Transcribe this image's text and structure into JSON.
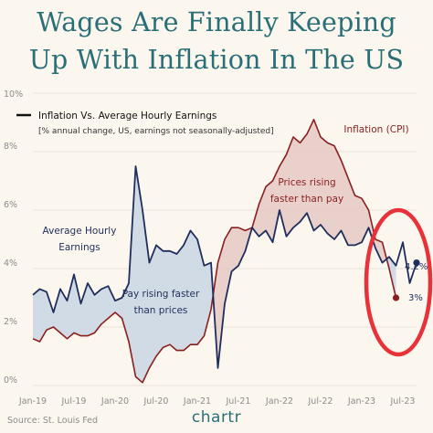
{
  "title_line1": "Wages Are Finally Keeping",
  "title_line2": "Up With Inflation In The US",
  "source": "Source: St. Louis Fed",
  "brand": "chartr",
  "chart_data": {
    "type": "line",
    "legend_title": "Inflation Vs. Average Hourly Earnings",
    "legend_subtitle": "[% annual change, US, earnings not seasonally-adjusted]",
    "xlabel": "",
    "ylabel": "",
    "ylim": [
      0,
      10
    ],
    "yticks": [
      "0%",
      "2%",
      "4%",
      "6%",
      "8%",
      "10%"
    ],
    "xticks": [
      "Jan-19",
      "Jul-19",
      "Jan-20",
      "Jul-20",
      "Jan-21",
      "Jul-21",
      "Jan-22",
      "Jul-22",
      "Jan-23",
      "Jul-23"
    ],
    "x_start": "2019-01",
    "series": [
      {
        "name": "Average Hourly Earnings",
        "color": "#1f2e5c",
        "values": [
          3.1,
          3.3,
          3.2,
          2.5,
          3.3,
          2.9,
          3.8,
          2.8,
          3.5,
          3.1,
          3.3,
          3.4,
          2.9,
          3.0,
          3.5,
          7.5,
          6.0,
          4.2,
          4.8,
          4.6,
          4.6,
          4.5,
          4.8,
          5.3,
          5.0,
          4.1,
          4.2,
          0.6,
          2.8,
          3.9,
          4.1,
          4.6,
          5.4,
          5.1,
          5.3,
          4.9,
          6.0,
          5.1,
          5.4,
          5.6,
          5.9,
          5.3,
          5.5,
          5.2,
          5.0,
          5.3,
          4.8,
          4.8,
          4.9,
          5.4,
          4.7,
          4.2,
          4.4,
          4.1,
          4.9,
          3.5,
          4.2
        ]
      },
      {
        "name": "Inflation (CPI)",
        "color": "#8a1f1f",
        "values": [
          1.6,
          1.5,
          1.9,
          2.0,
          1.8,
          1.6,
          1.8,
          1.7,
          1.7,
          1.8,
          2.1,
          2.3,
          2.5,
          2.3,
          1.5,
          0.3,
          0.1,
          0.6,
          1.0,
          1.3,
          1.4,
          1.2,
          1.2,
          1.4,
          1.4,
          1.7,
          2.6,
          4.2,
          5.0,
          5.4,
          5.4,
          5.3,
          5.4,
          6.2,
          6.8,
          7.0,
          7.5,
          7.9,
          8.5,
          8.3,
          8.6,
          9.1,
          8.5,
          8.3,
          8.2,
          7.7,
          7.1,
          6.5,
          6.4,
          6.0,
          5.0,
          4.9,
          4.0,
          3.0
        ]
      }
    ],
    "annotations": {
      "wages_label_1": "Average Hourly",
      "wages_label_2": "Earnings",
      "cpi_label": "Inflation (CPI)",
      "pay_faster_1": "Pay rising faster",
      "pay_faster_2": "than prices",
      "prices_faster_1": "Prices rising",
      "prices_faster_2": "faster than pay",
      "end_wages": "4.2%",
      "end_cpi": "3%"
    },
    "fill_color_wages_above": "#c9d6e3",
    "fill_color_prices_above": "#e6c9c4",
    "highlight_circle_color": "#e8323a",
    "grid": true
  }
}
